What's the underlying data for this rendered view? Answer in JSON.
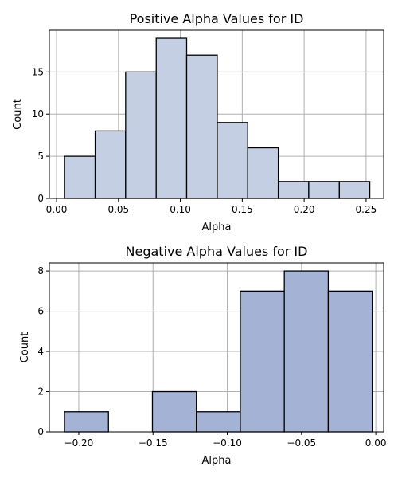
{
  "chart_data": [
    {
      "type": "bar",
      "title": "Positive Alpha Values for ID",
      "xlabel": "Alpha",
      "ylabel": "Count",
      "xlim": [
        -0.0058,
        0.2642
      ],
      "ylim": [
        0,
        19.95
      ],
      "xticks": [
        0.0,
        0.05,
        0.1,
        0.15,
        0.2,
        0.25
      ],
      "xtick_labels": [
        "0.00",
        "0.05",
        "0.10",
        "0.15",
        "0.20",
        "0.25"
      ],
      "yticks": [
        0,
        5,
        10,
        15
      ],
      "ytick_labels": [
        "0",
        "5",
        "10",
        "15"
      ],
      "bin_edges": [
        0.0065,
        0.0312,
        0.0558,
        0.0805,
        0.1051,
        0.1298,
        0.1544,
        0.1791,
        0.2037,
        0.2284,
        0.253
      ],
      "counts": [
        5,
        8,
        15,
        19,
        17,
        9,
        6,
        2,
        2,
        2
      ],
      "color": "#c4cfe3",
      "grid": true
    },
    {
      "type": "bar",
      "title": "Negative Alpha Values for ID",
      "xlabel": "Alpha",
      "ylabel": "Count",
      "xlim": [
        -0.2198,
        0.0053
      ],
      "ylim": [
        0,
        8.4
      ],
      "xticks": [
        -0.2,
        -0.15,
        -0.1,
        -0.05,
        0.0
      ],
      "xtick_labels": [
        "−0.20",
        "−0.15",
        "−0.10",
        "−0.05",
        "0.00"
      ],
      "yticks": [
        0,
        2,
        4,
        6,
        8
      ],
      "ytick_labels": [
        "0",
        "2",
        "4",
        "6",
        "8"
      ],
      "bin_edges": [
        -0.2096,
        -0.18,
        -0.1504,
        -0.1208,
        -0.0912,
        -0.0616,
        -0.032,
        -0.0024
      ],
      "counts": [
        1,
        0,
        2,
        1,
        7,
        8,
        7
      ],
      "color": "#a4b2d6",
      "grid": true
    }
  ]
}
